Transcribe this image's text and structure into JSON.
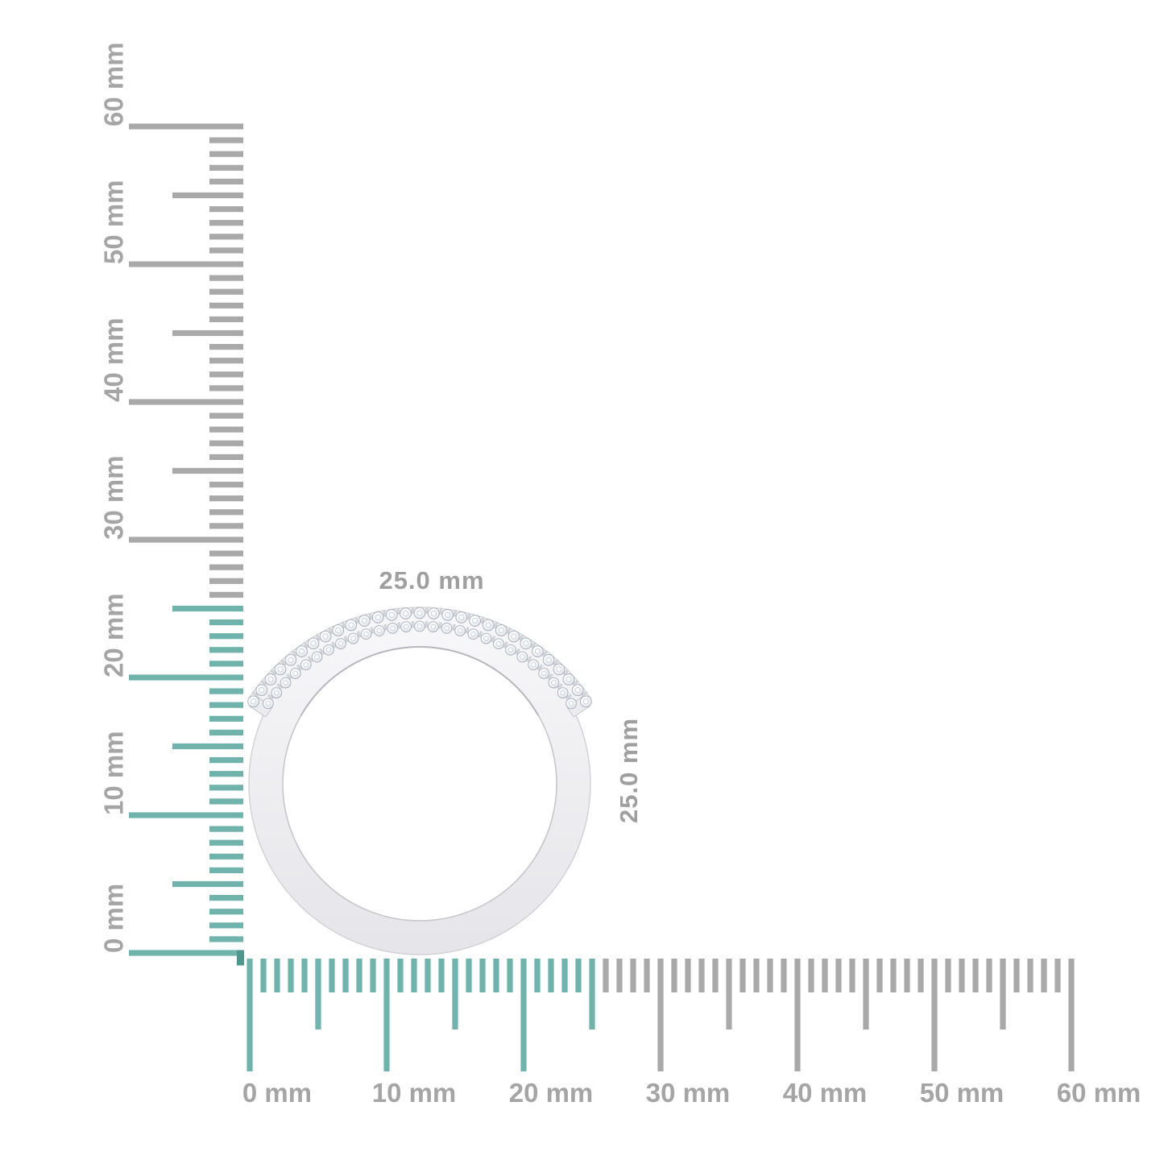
{
  "page": {
    "background": "#ffffff"
  },
  "object": {
    "name": "diamond-ring-profile",
    "width_label": "25.0 mm",
    "height_label": "25.0 mm"
  },
  "rulers": {
    "unit": "mm",
    "range_mm": [
      0,
      60
    ],
    "tick_interval_mm": 1,
    "mid_tick_every_mm": 5,
    "major_tick_every_mm": 10,
    "highlight_extent_mm": 25,
    "left": {
      "labels": [
        "0 mm",
        "10 mm",
        "20 mm",
        "30 mm",
        "40 mm",
        "50 mm",
        "60 mm"
      ]
    },
    "bottom": {
      "labels": [
        "0 mm",
        "10 mm",
        "20 mm",
        "30 mm",
        "40 mm",
        "50 mm",
        "60 mm"
      ]
    }
  },
  "colors": {
    "highlight_teal": "#6fb3ac",
    "corner_teal": "#4f968e",
    "tick_gray": "#a9a9a9",
    "label_gray": "#a5a5a5",
    "dimension_gray": "#9f9f9f",
    "metal": "#f0f0f3",
    "metal_edge": "#cdcdd3",
    "stone_stroke": "#a7acb6"
  }
}
